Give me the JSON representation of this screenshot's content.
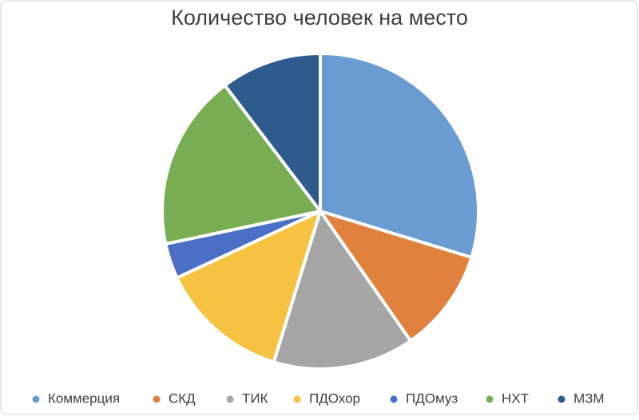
{
  "chart_data": {
    "type": "pie",
    "title": "Количество человек на место",
    "categories": [
      "Коммерция",
      "СКД",
      "ТИК",
      "ПДОхор",
      "ПДОмуз",
      "НХТ",
      "МЗМ"
    ],
    "values": [
      29.7,
      10.6,
      14.4,
      13.3,
      3.6,
      18.0,
      10.3
    ],
    "colors": [
      "#6a9bd1",
      "#e0823e",
      "#a5a5a5",
      "#f5c242",
      "#4a6fc4",
      "#78ad54",
      "#2e5a8e"
    ],
    "legend": "bottom"
  }
}
